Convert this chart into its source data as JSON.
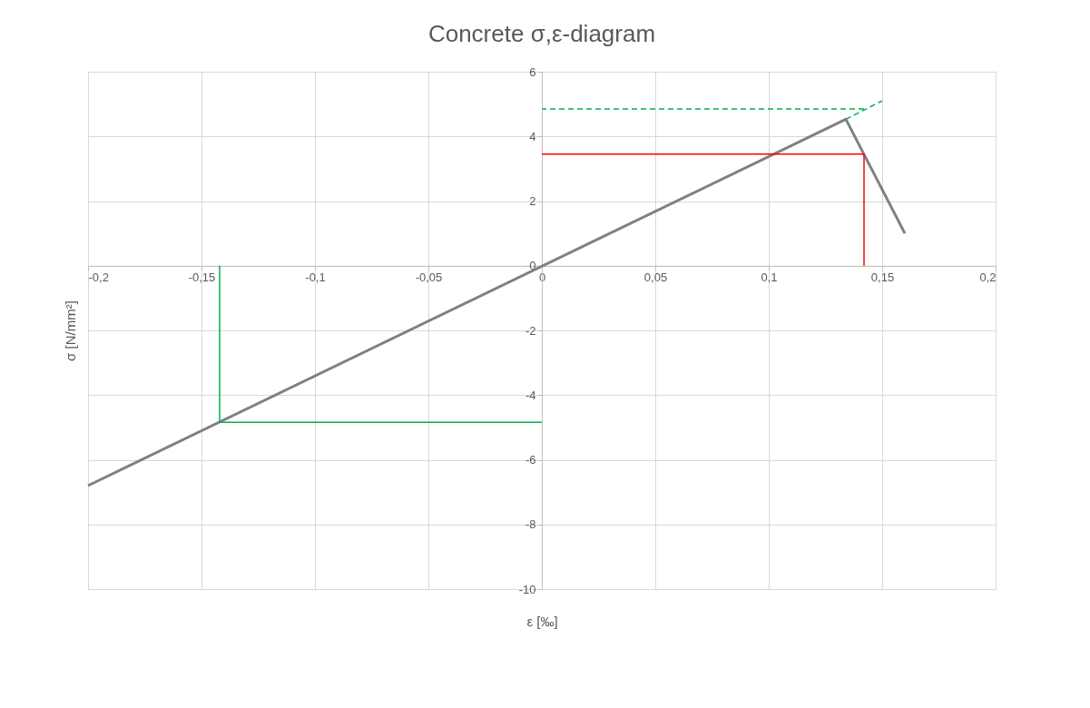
{
  "chart_data": {
    "type": "line",
    "title": "Concrete σ,ε-diagram",
    "xlabel": "ε [‰]",
    "ylabel": "σ [N/mm²]",
    "xlim": [
      -0.2,
      0.2
    ],
    "ylim": [
      -10,
      6
    ],
    "xticks": [
      {
        "value": -0.2,
        "label": "-0,2"
      },
      {
        "value": -0.15,
        "label": "-0,15"
      },
      {
        "value": -0.1,
        "label": "-0,1"
      },
      {
        "value": -0.05,
        "label": "-0,05"
      },
      0,
      {
        "value": 0.05,
        "label": "0,05"
      },
      {
        "value": 0.1,
        "label": "0,1"
      },
      {
        "value": 0.15,
        "label": "0,15"
      },
      {
        "value": 0.2,
        "label": "0,2"
      }
    ],
    "yticks": [
      -10,
      -8,
      -6,
      -4,
      -2,
      0,
      2,
      4,
      6
    ],
    "grid": true,
    "series": [
      {
        "color": "#808080",
        "x": [
          -0.2,
          0.134,
          0.16
        ],
        "values": [
          -6.8,
          4.53,
          1.0
        ]
      },
      {
        "color": "#00b050",
        "x": [
          0.134,
          0.15
        ],
        "values": [
          4.53,
          5.1
        ],
        "line_style": "dashed"
      },
      {
        "color": "#00b050",
        "x": [
          0.142,
          0
        ],
        "values": [
          4.85,
          4.85
        ],
        "line_style": "dashed"
      },
      {
        "color": "#ff0000",
        "x": [
          0.142,
          0.142
        ],
        "values": [
          0,
          3.45
        ]
      },
      {
        "color": "#ff0000",
        "x": [
          0.142,
          0
        ],
        "values": [
          3.45,
          3.45
        ]
      },
      {
        "color": "#00b050",
        "x": [
          -0.142,
          -0.142
        ],
        "values": [
          0,
          -4.84
        ]
      },
      {
        "color": "#00b050",
        "x": [
          -0.142,
          0
        ],
        "values": [
          -4.84,
          -4.84
        ]
      }
    ]
  }
}
